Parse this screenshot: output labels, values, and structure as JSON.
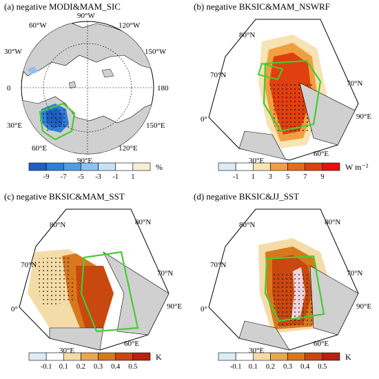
{
  "panels": {
    "a": {
      "title": "(a) negative MODI&MAM_SIC",
      "lon_labels": [
        "90°W",
        "120°W",
        "150°W",
        "180",
        "150°E",
        "120°E",
        "90°E",
        "60°E",
        "30°E",
        "0",
        "30°W",
        "60°W"
      ],
      "colorbar": {
        "ticks": [
          "-9",
          "-7",
          "-5",
          "-3",
          "-1",
          "1"
        ],
        "unit": "%",
        "colors": [
          "#1f5fbf",
          "#2f7fd6",
          "#4f9fe6",
          "#8fc3ef",
          "#c7e2f6",
          "#ffffff",
          "#f6efd8"
        ]
      }
    },
    "b": {
      "title": "(b) negative BKSIC&MAM_NSWRF",
      "lat_labels": [
        "80°N",
        "70°N",
        "70°N"
      ],
      "lon_labels": [
        "0°",
        "30°E",
        "60°E",
        "90°E"
      ],
      "colorbar": {
        "ticks": [
          "-1",
          "1",
          "3",
          "5",
          "7",
          "9"
        ],
        "unit": "W m⁻²",
        "colors": [
          "#dcecf7",
          "#ffffff",
          "#f7e3b3",
          "#f0a040",
          "#e86a20",
          "#e04010",
          "#e81010"
        ]
      }
    },
    "c": {
      "title": "(c) negative BKSIC&MAM_SST",
      "lat_labels": [
        "80°N",
        "80°N",
        "70°N",
        "70°N"
      ],
      "lon_labels": [
        "0°",
        "30°E",
        "60°E",
        "90°E"
      ],
      "colorbar": {
        "ticks": [
          "-0.1",
          "0.1",
          "0.2",
          "0.3",
          "0.4",
          "0.5"
        ],
        "unit": "K",
        "colors": [
          "#dcecf7",
          "#ffffff",
          "#f4dca8",
          "#e8a850",
          "#d8781c",
          "#c84810",
          "#b82010"
        ]
      }
    },
    "d": {
      "title": "(d) negative BKSIC&JJ_SST",
      "lat_labels": [
        "80°N",
        "80°N",
        "70°N",
        "70°N"
      ],
      "lon_labels": [
        "0°",
        "30°E",
        "60°E",
        "90°E"
      ],
      "colorbar": {
        "ticks": [
          "-0.1",
          "0.1",
          "0.2",
          "0.3",
          "0.4",
          "0.5"
        ],
        "unit": "K",
        "colors": [
          "#dcecf7",
          "#ffffff",
          "#f4dca8",
          "#e8a850",
          "#d8781c",
          "#c84810",
          "#b82010"
        ]
      }
    }
  }
}
